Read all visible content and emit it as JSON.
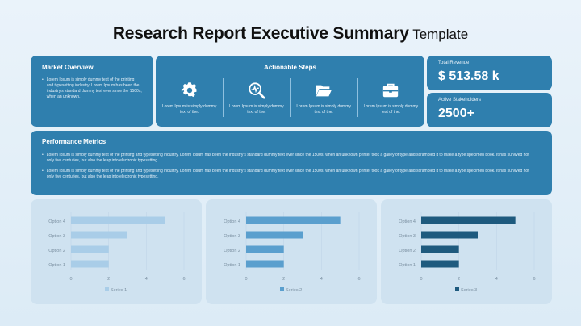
{
  "title": {
    "main": "Research Report Executive Summary",
    "sub": "Template"
  },
  "market_overview": {
    "heading": "Market Overview",
    "text": "Lorem Ipsum is simply dummy text of the printing and typesetting industry. Lorem Ipsum has been the industry's standard dummy text ever since the 1500s, when an unknown."
  },
  "actionable_steps": {
    "heading": "Actionable Steps",
    "items": [
      {
        "icon": "gear-icon",
        "text": "Lorem Ipsum is simply dummy text of the."
      },
      {
        "icon": "magnifier-chart-icon",
        "text": "Lorem Ipsum is simply dummy text of the."
      },
      {
        "icon": "folder-icon",
        "text": "Lorem Ipsum is simply dummy text of the."
      },
      {
        "icon": "briefcase-icon",
        "text": "Lorem Ipsum is simply dummy text of the."
      }
    ]
  },
  "kpis": {
    "revenue_label": "Total Revenue",
    "revenue_value": "$ 513.58 k",
    "stakeholders_label": "Active Stakeholders",
    "stakeholders_value": "2500+"
  },
  "performance": {
    "heading": "Performance Metrics",
    "bullets": [
      "Lorem Ipsum is simply dummy text of the printing and typesetting industry. Lorem Ipsum has been the industry's standard dummy text ever since the 1500s, when an unknown printer took a galley of type and scrambled it to make a type specimen book. It has survived not only five centuries, but also the leap into electronic typesetting.",
      "Lorem Ipsum is simply dummy text of the printing and typesetting industry. Lorem Ipsum has been the industry's standard dummy text ever since the 1500s, when an unknown printer took a galley of type and scrambled it to make a type specimen book. It has survived not only five centuries, but also the leap into electronic typesetting."
    ]
  },
  "colors": {
    "card": "#2f7fae",
    "series1": "#a9cde8",
    "series2": "#5a9fce",
    "series3": "#1e5a7e"
  },
  "chart_data": [
    {
      "type": "bar",
      "orientation": "horizontal",
      "categories": [
        "Option 4",
        "Option 3",
        "Option 2",
        "Option 1"
      ],
      "series": [
        {
          "name": "Series 1",
          "values": [
            5,
            3,
            2,
            2
          ],
          "color": "#a9cde8"
        }
      ],
      "xlim": [
        0,
        6
      ],
      "xticks": [
        0,
        2,
        4,
        6
      ],
      "legend": "bottom"
    },
    {
      "type": "bar",
      "orientation": "horizontal",
      "categories": [
        "Option 4",
        "Option 3",
        "Option 2",
        "Option 1"
      ],
      "series": [
        {
          "name": "Series 2",
          "values": [
            5,
            3,
            2,
            2
          ],
          "color": "#5a9fce"
        }
      ],
      "xlim": [
        0,
        6
      ],
      "xticks": [
        0,
        2,
        4,
        6
      ],
      "legend": "bottom"
    },
    {
      "type": "bar",
      "orientation": "horizontal",
      "categories": [
        "Option 4",
        "Option 3",
        "Option 2",
        "Option 1"
      ],
      "series": [
        {
          "name": "Series 3",
          "values": [
            5,
            3,
            2,
            2
          ],
          "color": "#1e5a7e"
        }
      ],
      "xlim": [
        0,
        6
      ],
      "xticks": [
        0,
        2,
        4,
        6
      ],
      "legend": "bottom"
    }
  ]
}
